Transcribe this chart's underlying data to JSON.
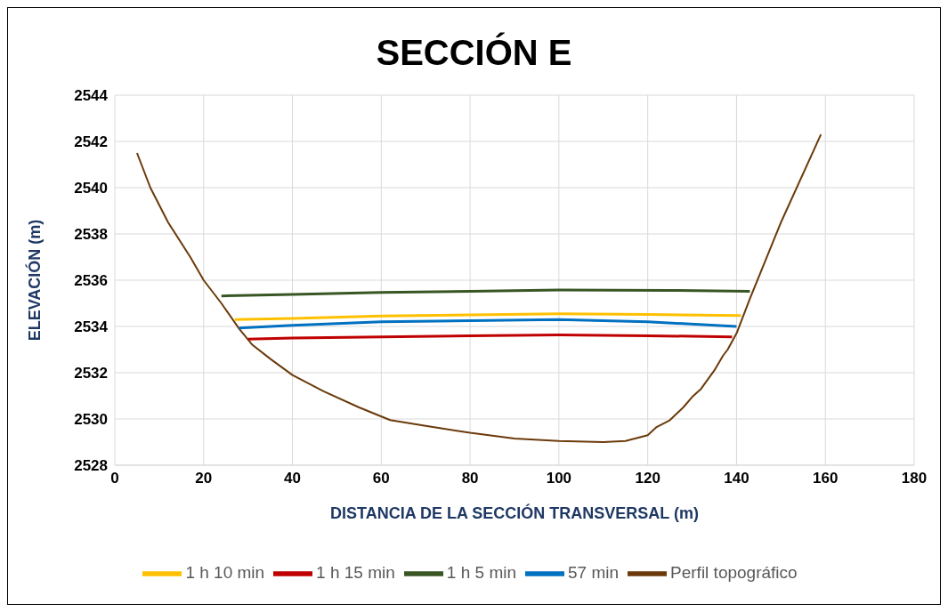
{
  "chart_data": {
    "type": "line",
    "title": "SECCIÓN E",
    "xlabel": "DISTANCIA DE LA SECCIÓN TRANSVERSAL (m)",
    "ylabel": "ELEVACIÓN (m)",
    "xlim": [
      0,
      180
    ],
    "xticks": [
      0,
      20,
      40,
      60,
      80,
      100,
      120,
      140,
      160,
      180
    ],
    "ylim": [
      2528,
      2544
    ],
    "yticks": [
      2528,
      2530,
      2532,
      2534,
      2536,
      2538,
      2540,
      2542,
      2544
    ],
    "grid": true,
    "legend": "bottom",
    "marker": "none",
    "line_style": "solid",
    "series": [
      {
        "name": "Perfil topográfico",
        "color": "#6b3a0a",
        "x": [
          5,
          8,
          12,
          17,
          20,
          24,
          28,
          31,
          35,
          40,
          47,
          55,
          62,
          70,
          80,
          90,
          100,
          110,
          115,
          120,
          122,
          125,
          128,
          130,
          132,
          135,
          137,
          138,
          140,
          143,
          150,
          159
        ],
        "values": [
          2541.5,
          2540,
          2538.5,
          2537,
          2536,
          2535,
          2533.9,
          2533.2,
          2532.6,
          2531.9,
          2531.2,
          2530.5,
          2529.95,
          2529.7,
          2529.4,
          2529.15,
          2529.05,
          2529,
          2529.05,
          2529.3,
          2529.65,
          2529.95,
          2530.5,
          2530.95,
          2531.3,
          2532.1,
          2532.75,
          2533,
          2533.7,
          2535.2,
          2538.5,
          2542.3
        ]
      },
      {
        "name": "57 min",
        "color": "#0070c0",
        "x": [
          28,
          40,
          60,
          80,
          100,
          120,
          140
        ],
        "values": [
          2533.93,
          2534.05,
          2534.2,
          2534.25,
          2534.3,
          2534.2,
          2534
        ]
      },
      {
        "name": "1 h 5 min",
        "color": "#375623",
        "x": [
          24,
          40,
          60,
          80,
          100,
          125,
          143
        ],
        "values": [
          2535.32,
          2535.38,
          2535.47,
          2535.52,
          2535.58,
          2535.56,
          2535.52
        ]
      },
      {
        "name": "1 h 10 min",
        "color": "#ffc000",
        "x": [
          27,
          40,
          60,
          80,
          100,
          120,
          141
        ],
        "values": [
          2534.3,
          2534.35,
          2534.45,
          2534.5,
          2534.55,
          2534.52,
          2534.47
        ]
      },
      {
        "name": "1 h 15 min",
        "color": "#c00000",
        "x": [
          30,
          40,
          60,
          80,
          100,
          120,
          139
        ],
        "values": [
          2533.45,
          2533.5,
          2533.55,
          2533.6,
          2533.63,
          2533.6,
          2533.55
        ]
      }
    ]
  }
}
